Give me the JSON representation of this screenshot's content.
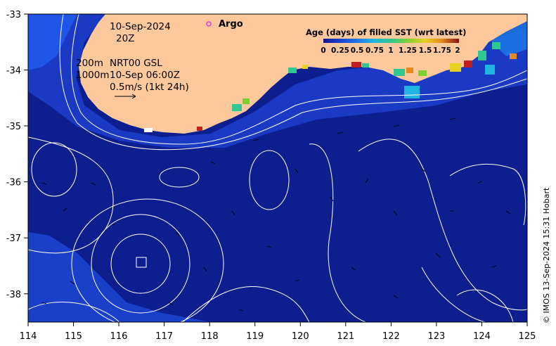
{
  "map": {
    "date_line": "10-Sep-2024",
    "time_line": "20Z",
    "depth_label_200": "200m",
    "depth_label_1000": "1000m",
    "source_label": "NRT00 GSL",
    "source_time": "10-Sep 06:00Z",
    "vector_scale": "0.5m/s (1kt 24h)",
    "argo_label": "Argo",
    "credit": "© IMOS 13-Sep-2024 15:31 Hobart"
  },
  "axes": {
    "x_ticks": [
      "114",
      "115",
      "116",
      "117",
      "118",
      "119",
      "120",
      "121",
      "122",
      "123",
      "124",
      "125"
    ],
    "y_ticks": [
      "-33",
      "-34",
      "-35",
      "-36",
      "-37",
      "-38"
    ]
  },
  "legend": {
    "title": "Age (days) of filled SST (wrt latest)",
    "ticks": [
      "0",
      "0.25",
      "0.5",
      "0.75",
      "1",
      "1.25",
      "1.5",
      "1.75",
      "2"
    ],
    "colors": [
      "#1a1a8c",
      "#1b3fd0",
      "#1e78e6",
      "#20b4e0",
      "#30c890",
      "#7cd030",
      "#e6d020",
      "#e68a1e",
      "#c02020",
      "#7a1010"
    ]
  },
  "colors": {
    "ocean": "#0d1e8e",
    "land": "#fcc89c",
    "argo": "#e040e0"
  }
}
